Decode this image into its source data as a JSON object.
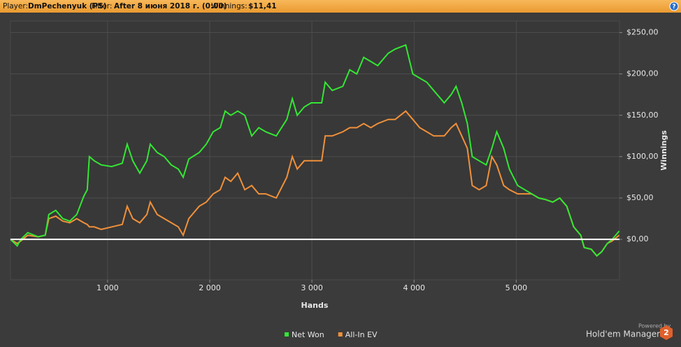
{
  "header": {
    "player_label": "Player:",
    "player": "DmPechenyuk (PS)",
    "filter_label": "Filter:",
    "filter": "After 8 июня 2018 г. (0:00)",
    "winnings_label": "Winnings:",
    "winnings": "$11,41",
    "help": "?"
  },
  "chart_data": {
    "type": "line",
    "x_label": "Hands",
    "y_label": "Winnings",
    "x": [
      50,
      116,
      151,
      219,
      322,
      390,
      425,
      493,
      562,
      630,
      699,
      767,
      801,
      822,
      870,
      938,
      1041,
      1144,
      1192,
      1247,
      1315,
      1384,
      1418,
      1486,
      1555,
      1623,
      1692,
      1740,
      1795,
      1897,
      1966,
      2034,
      2103,
      2151,
      2206,
      2274,
      2343,
      2411,
      2480,
      2548,
      2651,
      2754,
      2808,
      2856,
      2925,
      2993,
      3096,
      3130,
      3199,
      3302,
      3370,
      3439,
      3507,
      3576,
      3644,
      3747,
      3815,
      3918,
      3987,
      4055,
      4124,
      4192,
      4295,
      4363,
      4411,
      4466,
      4521,
      4569,
      4637,
      4706,
      4761,
      4809,
      4877,
      4932,
      5014,
      5083,
      5151,
      5220,
      5288,
      5357,
      5425,
      5494,
      5562,
      5631,
      5665,
      5734,
      5788,
      5836,
      5891,
      5939,
      6007
    ],
    "series": [
      {
        "name": "Net Won",
        "color": "#33e633",
        "values": [
          0,
          -8,
          0,
          8,
          3,
          5,
          30,
          35,
          25,
          22,
          30,
          52,
          60,
          100,
          95,
          90,
          88,
          92,
          115,
          95,
          80,
          95,
          115,
          105,
          100,
          90,
          85,
          75,
          97,
          105,
          115,
          130,
          135,
          155,
          150,
          155,
          150,
          125,
          135,
          130,
          125,
          145,
          170,
          150,
          160,
          165,
          165,
          190,
          180,
          185,
          205,
          200,
          220,
          215,
          210,
          225,
          230,
          235,
          200,
          195,
          190,
          180,
          165,
          175,
          185,
          165,
          140,
          100,
          95,
          90,
          110,
          130,
          110,
          85,
          65,
          60,
          55,
          50,
          48,
          45,
          50,
          40,
          15,
          5,
          -10,
          -12,
          -20,
          -15,
          -5,
          0,
          10
        ]
      },
      {
        "name": "All-In EV",
        "color": "#f0903a",
        "values": [
          0,
          -5,
          -2,
          5,
          3,
          5,
          25,
          28,
          22,
          20,
          25,
          20,
          18,
          15,
          15,
          12,
          15,
          18,
          40,
          25,
          20,
          30,
          45,
          30,
          25,
          20,
          15,
          5,
          25,
          40,
          45,
          55,
          60,
          75,
          70,
          80,
          60,
          65,
          55,
          55,
          50,
          75,
          100,
          85,
          95,
          95,
          95,
          125,
          125,
          130,
          135,
          135,
          140,
          135,
          140,
          145,
          145,
          155,
          145,
          135,
          130,
          125,
          125,
          135,
          140,
          125,
          110,
          65,
          60,
          65,
          100,
          90,
          65,
          60,
          55,
          55,
          55,
          50,
          48,
          45,
          50,
          40,
          15,
          5,
          -10,
          -12,
          -20,
          -15,
          -5,
          -2,
          5
        ]
      }
    ],
    "xlim": [
      50,
      6010
    ],
    "ylim": [
      -49,
      264
    ],
    "xticks": [
      {
        "value": 1000,
        "label": "1 000"
      },
      {
        "value": 2000,
        "label": "2 000"
      },
      {
        "value": 3000,
        "label": "3 000"
      },
      {
        "value": 4000,
        "label": "4 000"
      },
      {
        "value": 5000,
        "label": "5 000"
      }
    ],
    "yticks": [
      {
        "value": 0,
        "label": "$0,00"
      },
      {
        "value": 50,
        "label": "$50,00"
      },
      {
        "value": 100,
        "label": "$100,00"
      },
      {
        "value": 150,
        "label": "$150,00"
      },
      {
        "value": 200,
        "label": "$200,00"
      },
      {
        "value": 250,
        "label": "$250,00"
      }
    ],
    "grid": true
  },
  "branding": {
    "powered": "Powered by",
    "name": "Hold'em Manager",
    "version": "2"
  }
}
